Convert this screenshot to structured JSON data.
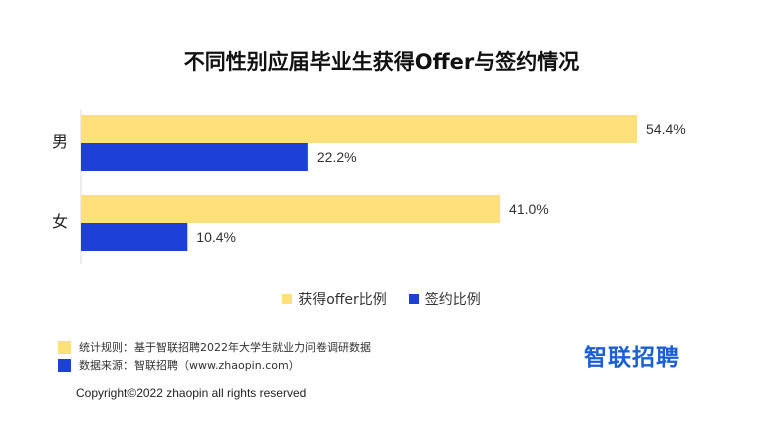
{
  "chart_data": {
    "type": "bar",
    "orientation": "horizontal",
    "title": "不同性别应届毕业生获得Offer与签约情况",
    "categories": [
      "男",
      "女"
    ],
    "series": [
      {
        "name": "获得offer比例",
        "values": [
          54.4,
          41.0
        ],
        "labels": [
          "54.4%",
          "41.0%"
        ],
        "color": "#ffe07a"
      },
      {
        "name": "签约比例",
        "values": [
          22.2,
          10.4
        ],
        "labels": [
          "22.2%",
          "10.4%"
        ],
        "color": "#1d41d8"
      }
    ],
    "xlim": [
      0,
      54.4
    ],
    "grid": false,
    "legend_position": "bottom"
  },
  "notes": [
    {
      "text": "统计规则：基于智联招聘2022年大学生就业力问卷调研数据",
      "color": "#ffe07a"
    },
    {
      "text": "数据来源：智联招聘（www.zhaopin.com）",
      "color": "#1d41d8"
    }
  ],
  "logo_text": "智联招聘",
  "copyright": "Copyright©2022 zhaopin all rights reserved"
}
